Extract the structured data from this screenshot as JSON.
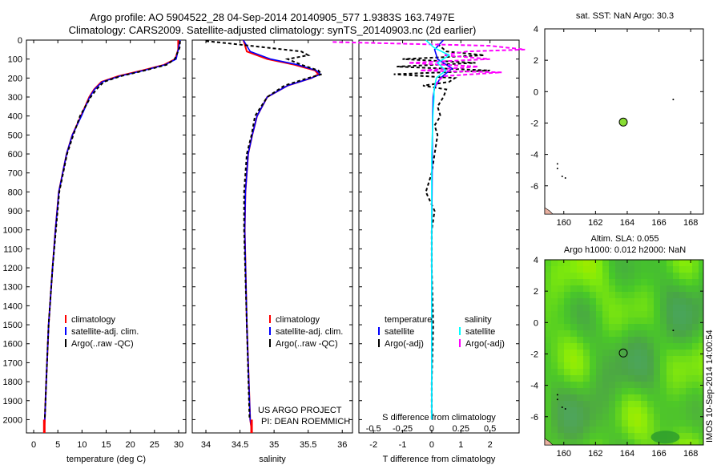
{
  "header": {
    "line1": "Argo profile: AO 5904522_28 04-Sep-2014 20140905_577 1.9383S 163.7497E",
    "line2": "Climatology: CARS2009. Satellite-adjusted climatology: synTS_20140903.nc (2d earlier)"
  },
  "right_titles": {
    "sst": "sat. SST: NaN Argo: 30.3",
    "sla1": "Altim. SLA: 0.055",
    "sla2": "Argo h1000: 0.012 h2000: NaN"
  },
  "stamp": "IMOS 10-Sep-2014 14:00:54",
  "project": {
    "line1": "US ARGO PROJECT",
    "line2": "PI: DEAN ROEMMICH"
  },
  "colors": {
    "climatology": "#ff0000",
    "satellite": "#0000ff",
    "argo": "#000000",
    "sat_salinity": "#00ffff",
    "argo_salinity": "#ff00ff",
    "float_marker": "#88dd33"
  },
  "chart_data": [
    {
      "type": "line",
      "xlabel": "temperature (deg C)",
      "xlim": [
        -1.5,
        31.5
      ],
      "ylim": [
        2070,
        0
      ],
      "yticks": [
        0,
        100,
        200,
        300,
        400,
        500,
        600,
        700,
        800,
        900,
        1000,
        1100,
        1200,
        1300,
        1400,
        1500,
        1600,
        1700,
        1800,
        1900,
        2000
      ],
      "xticks": [
        0,
        5,
        10,
        15,
        20,
        25,
        30
      ],
      "legend": [
        "climatology",
        "satellite-adj. clim.",
        "Argo(..raw -QC)"
      ],
      "series": [
        {
          "name": "climatology",
          "depth": [
            0,
            50,
            100,
            130,
            160,
            190,
            220,
            260,
            300,
            400,
            500,
            600,
            800,
            1000,
            1200,
            1500,
            1800,
            2000,
            2050
          ],
          "values": [
            29.9,
            29.9,
            29.3,
            27.0,
            22.5,
            17.5,
            14.0,
            12.5,
            11.5,
            9.8,
            8.0,
            6.8,
            5.2,
            4.5,
            3.9,
            3.1,
            2.6,
            2.3,
            2.2
          ]
        },
        {
          "name": "satellite-adj. clim.",
          "depth": [
            0,
            40,
            100,
            130,
            160,
            190,
            220,
            260,
            300,
            400,
            500,
            600,
            800,
            1000,
            1200,
            1500,
            1800,
            2000,
            2050
          ],
          "values": [
            30.3,
            30.0,
            29.5,
            27.2,
            22.8,
            17.8,
            14.2,
            12.6,
            11.6,
            9.9,
            8.0,
            6.8,
            5.2,
            4.5,
            3.9,
            3.1,
            2.6,
            2.3,
            2.2
          ]
        },
        {
          "name": "Argo(..raw -QC)",
          "depth": [
            5,
            40,
            100,
            130,
            160,
            190,
            220,
            260,
            300,
            400,
            500,
            600,
            800,
            1000,
            1200,
            1500,
            1800,
            2000
          ],
          "values": [
            30.3,
            30.2,
            29.2,
            27.5,
            23.0,
            18.0,
            14.5,
            13.0,
            11.8,
            9.6,
            8.2,
            6.9,
            5.3,
            4.6,
            3.9,
            3.1,
            2.6,
            2.3
          ]
        }
      ]
    },
    {
      "type": "line",
      "xlabel": "salinity",
      "xlim": [
        33.8,
        36.15
      ],
      "ylim": [
        2070,
        0
      ],
      "xticks": [
        34,
        34.5,
        35,
        35.5,
        36
      ],
      "legend": [
        "climatology",
        "satellite-adj. clim.",
        "Argo(..raw -QC)"
      ],
      "series": [
        {
          "name": "climatology",
          "depth": [
            0,
            60,
            100,
            130,
            160,
            180,
            200,
            240,
            300,
            400,
            500,
            600,
            800,
            1000,
            1500,
            2000,
            2050
          ],
          "values": [
            34.55,
            34.6,
            34.9,
            35.3,
            35.6,
            35.65,
            35.55,
            35.2,
            34.9,
            34.75,
            34.68,
            34.62,
            34.58,
            34.57,
            34.6,
            34.65,
            34.67
          ]
        },
        {
          "name": "satellite-adj. clim.",
          "depth": [
            0,
            60,
            100,
            130,
            160,
            180,
            200,
            240,
            300,
            400,
            500,
            600,
            800,
            1000,
            1500,
            2000,
            2050
          ],
          "values": [
            34.55,
            34.65,
            34.95,
            35.35,
            35.62,
            35.68,
            35.55,
            35.2,
            34.9,
            34.75,
            34.68,
            34.62,
            34.58,
            34.57,
            34.6,
            34.65,
            34.67
          ]
        },
        {
          "name": "Argo(..raw -QC)",
          "depth": [
            5,
            20,
            60,
            80,
            100,
            130,
            160,
            180,
            200,
            240,
            300,
            400,
            500,
            600,
            800,
            1000,
            1500,
            2000
          ],
          "values": [
            34.0,
            34.4,
            35.4,
            35.5,
            35.2,
            35.4,
            35.65,
            35.7,
            35.5,
            35.15,
            34.9,
            34.72,
            34.67,
            34.6,
            34.56,
            34.56,
            34.6,
            34.64
          ]
        }
      ]
    },
    {
      "type": "line",
      "xlabel": "T difference from climatology",
      "xlabel_top": "S difference from climatology",
      "xlim": [
        -2.5,
        3
      ],
      "ylim": [
        2070,
        0
      ],
      "xticks": [
        -2,
        -1,
        0,
        1,
        2
      ],
      "xticks_top": [
        -0.5,
        -0.25,
        0,
        0.25,
        0.5
      ],
      "legend_headers": [
        "temperature",
        "salinity"
      ],
      "legend": [
        "satellite",
        "Argo(-adj)",
        "satellite",
        "Argo(-adj)"
      ],
      "series": [
        {
          "name": "satellite",
          "depth": [
            0,
            50,
            100,
            150,
            200,
            250,
            300,
            400,
            600,
            800,
            1000,
            1500,
            2000
          ],
          "values": [
            0.4,
            0.1,
            0.2,
            0.7,
            0.3,
            0.1,
            0.05,
            0.03,
            0.02,
            0.01,
            0,
            0,
            0
          ]
        },
        {
          "name": "Argo(-adj)",
          "depth": [
            20,
            60,
            80,
            100,
            120,
            140,
            160,
            180,
            200,
            220,
            240,
            260,
            300,
            350,
            400,
            450,
            500,
            600,
            700,
            800,
            900,
            1000,
            1200,
            1500,
            1800,
            2000
          ],
          "values": [
            0.2,
            0.5,
            1.8,
            -1.0,
            1.5,
            -1.2,
            2.0,
            -1.3,
            0.8,
            0.6,
            -0.3,
            0.5,
            0.4,
            0.2,
            0.3,
            0.1,
            0.2,
            0.1,
            0,
            -0.2,
            0.1,
            0,
            0,
            0.05,
            0,
            0
          ]
        },
        {
          "name": "satellite salinity",
          "depth": [
            0,
            40,
            80,
            120,
            160,
            200,
            260,
            300,
            400,
            600,
            800,
            1000,
            1500,
            2000
          ],
          "values": [
            -0.05,
            0.02,
            0.15,
            0.05,
            0.12,
            0.04,
            0.02,
            0.02,
            0.01,
            0,
            0,
            0,
            0,
            0
          ]
        },
        {
          "name": "Argo(-adj) salinity",
          "depth": [
            10,
            30,
            50,
            60,
            80,
            100,
            120,
            140,
            160,
            170,
            190,
            220,
            250
          ],
          "values": [
            -0.85,
            0.5,
            0.8,
            0.3,
            0.1,
            0.5,
            -0.2,
            0.4,
            -0.1,
            0.6,
            0.1,
            0.05,
            0.02
          ]
        }
      ]
    },
    {
      "type": "scatter",
      "title": "sat. SST: NaN Argo: 30.3",
      "xlim": [
        158.8,
        168.8
      ],
      "ylim": [
        -7.8,
        4
      ],
      "xticks": [
        160,
        162,
        164,
        166,
        168
      ],
      "yticks": [
        -6,
        -4,
        -2,
        0,
        2,
        4
      ],
      "points": [
        {
          "x": 163.75,
          "y": -1.94
        }
      ]
    },
    {
      "type": "heatmap",
      "title": "Altim. SLA: 0.055 / Argo h1000: 0.012 h2000: NaN",
      "xlim": [
        158.8,
        168.8
      ],
      "ylim": [
        -7.8,
        4
      ],
      "xticks": [
        160,
        162,
        164,
        166,
        168
      ],
      "yticks": [
        -6,
        -4,
        -2,
        0,
        2,
        4
      ],
      "points": [
        {
          "x": 163.75,
          "y": -1.94
        }
      ]
    }
  ]
}
